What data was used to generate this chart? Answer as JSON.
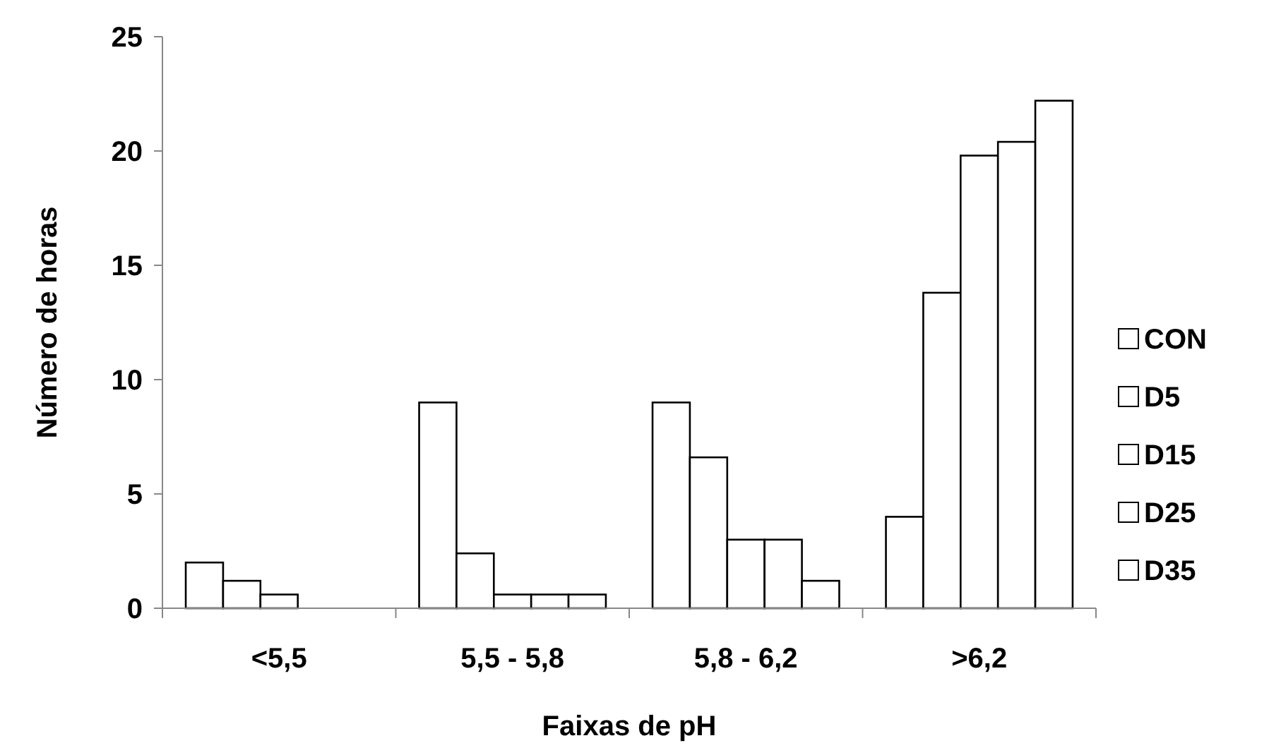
{
  "chart_data": {
    "type": "bar",
    "xlabel": "Faixas de pH",
    "ylabel": "Número de horas",
    "categories": [
      "<5,5",
      "5,5 - 5,8",
      "5,8 - 6,2",
      ">6,2"
    ],
    "series": [
      {
        "name": "CON",
        "color": "#ffffff",
        "values": [
          2,
          9,
          9,
          4
        ]
      },
      {
        "name": "D5",
        "color": "#ffffff",
        "values": [
          1.2,
          2.4,
          6.6,
          13.8
        ]
      },
      {
        "name": "D15",
        "color": "#ffffff",
        "values": [
          0.6,
          0.6,
          3,
          19.8
        ]
      },
      {
        "name": "D25",
        "color": "#ffffff",
        "values": [
          0,
          0.6,
          3,
          20.4
        ]
      },
      {
        "name": "D35",
        "color": "#ffffff",
        "values": [
          0,
          0.6,
          1.2,
          22.2
        ]
      }
    ],
    "ylim": [
      0,
      25
    ],
    "yticks": [
      0,
      5,
      10,
      15,
      20,
      25
    ],
    "grid": false,
    "legend": "right"
  }
}
